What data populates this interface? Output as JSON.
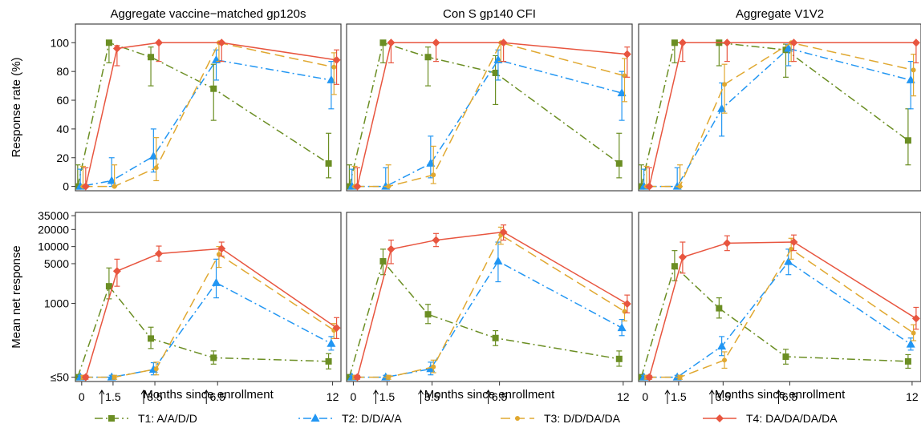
{
  "chart_data": {
    "type": "line",
    "panels": [
      {
        "title": "Aggregate vaccine−matched gp120s"
      },
      {
        "title": "Con S gp140 CFI"
      },
      {
        "title": "Aggregate V1V2"
      }
    ],
    "x": [
      0,
      1.5,
      3.5,
      6.5,
      12
    ],
    "x_tick_labels": [
      "0",
      "1.5",
      "3.5",
      "6.5",
      "12"
    ],
    "x_tick_arrows": [
      false,
      true,
      true,
      true,
      false
    ],
    "xlabel": "Months since enrollment",
    "xlim": [
      -0.3,
      12.4
    ],
    "rows": [
      {
        "key": "rate",
        "ylabel": "Response rate (%)",
        "scale": "linear",
        "ylim": [
          -3,
          113
        ],
        "y_ticks": [
          0,
          20,
          40,
          60,
          80,
          100
        ],
        "y_tick_labels": [
          "0",
          "20",
          "40",
          "60",
          "80",
          "100"
        ],
        "data": [
          [
            {
              "values": [
                0,
                100,
                90,
                68,
                16
              ],
              "lower": [
                0,
                86,
                70,
                46,
                6
              ],
              "upper": [
                15,
                100,
                97,
                85,
                37
              ]
            },
            {
              "values": [
                0,
                4,
                21,
                88,
                74
              ],
              "lower": [
                0,
                0,
                10,
                74,
                54
              ],
              "upper": [
                12,
                20,
                40,
                95,
                87
              ]
            },
            {
              "values": [
                0,
                0,
                13,
                100,
                83
              ],
              "lower": [
                0,
                0,
                4,
                87,
                64
              ],
              "upper": [
                14,
                15,
                34,
                100,
                93
              ]
            },
            {
              "values": [
                0,
                96,
                100,
                100,
                88
              ],
              "lower": [
                0,
                84,
                87,
                87,
                71
              ],
              "upper": [
                13,
                98,
                100,
                100,
                95
              ]
            }
          ],
          [
            {
              "values": [
                0,
                100,
                90,
                79,
                16
              ],
              "lower": [
                0,
                86,
                70,
                57,
                6
              ],
              "upper": [
                15,
                100,
                97,
                91,
                37
              ]
            },
            {
              "values": [
                0,
                0,
                16,
                88,
                65
              ],
              "lower": [
                0,
                0,
                6,
                74,
                46
              ],
              "upper": [
                12,
                13,
                35,
                95,
                80
              ]
            },
            {
              "values": [
                0,
                0,
                8,
                100,
                77
              ],
              "lower": [
                0,
                0,
                2,
                87,
                59
              ],
              "upper": [
                14,
                15,
                28,
                100,
                89
              ]
            },
            {
              "values": [
                0,
                100,
                100,
                100,
                92
              ],
              "lower": [
                0,
                86,
                87,
                87,
                76
              ],
              "upper": [
                13,
                100,
                100,
                100,
                97
              ]
            }
          ],
          [
            {
              "values": [
                0,
                100,
                100,
                95,
                32
              ],
              "lower": [
                0,
                86,
                84,
                76,
                15
              ],
              "upper": [
                15,
                100,
                100,
                99,
                54
              ]
            },
            {
              "values": [
                0,
                0,
                54,
                96,
                74
              ],
              "lower": [
                0,
                0,
                35,
                84,
                54
              ],
              "upper": [
                12,
                13,
                72,
                99,
                87
              ]
            },
            {
              "values": [
                0,
                0,
                71,
                100,
                81
              ],
              "lower": [
                0,
                0,
                51,
                87,
                63
              ],
              "upper": [
                14,
                15,
                85,
                100,
                92
              ]
            },
            {
              "values": [
                0,
                100,
                100,
                100,
                100
              ],
              "lower": [
                0,
                87,
                87,
                87,
                86
              ],
              "upper": [
                13,
                100,
                100,
                100,
                100
              ]
            }
          ]
        ]
      },
      {
        "key": "mean",
        "ylabel": "Mean net response",
        "scale": "log",
        "ylim": [
          42,
          40000
        ],
        "y_ticks": [
          50,
          1000,
          5000,
          10000,
          20000,
          35000
        ],
        "y_tick_labels": [
          "≤50",
          "1000",
          "5000",
          "10000",
          "20000",
          "35000"
        ],
        "data": [
          [
            {
              "values": [
                50,
                2000,
                240,
                110,
                95
              ],
              "lower": [
                46,
                1200,
                160,
                85,
                70
              ],
              "upper": [
                54,
                4200,
                380,
                145,
                130
              ]
            },
            {
              "values": [
                50,
                50,
                68,
                2300,
                195
              ],
              "lower": [
                46,
                46,
                55,
                1250,
                150
              ],
              "upper": [
                54,
                54,
                90,
                6000,
                260
              ]
            },
            {
              "values": [
                50,
                50,
                70,
                7300,
                335
              ],
              "lower": [
                46,
                46,
                55,
                4300,
                240
              ],
              "upper": [
                54,
                54,
                92,
                10000,
                440
              ]
            },
            {
              "values": [
                50,
                3700,
                7500,
                9200,
                370
              ],
              "lower": [
                46,
                2000,
                5500,
                6800,
                240
              ],
              "upper": [
                54,
                6000,
                10200,
                12000,
                560
              ]
            }
          ],
          [
            {
              "values": [
                50,
                5500,
                640,
                245,
                105
              ],
              "lower": [
                46,
                3200,
                440,
                180,
                78
              ],
              "upper": [
                54,
                9000,
                960,
                330,
                145
              ]
            },
            {
              "values": [
                50,
                50,
                70,
                5500,
                370
              ],
              "lower": [
                46,
                46,
                55,
                2400,
                270
              ],
              "upper": [
                54,
                54,
                92,
                12000,
                520
              ]
            },
            {
              "values": [
                50,
                50,
                76,
                16000,
                720
              ],
              "lower": [
                46,
                46,
                60,
                11000,
                490
              ],
              "upper": [
                54,
                54,
                100,
                22000,
                1000
              ]
            },
            {
              "values": [
                50,
                9000,
                13000,
                18000,
                980
              ],
              "lower": [
                46,
                5000,
                10000,
                13000,
                680
              ],
              "upper": [
                54,
                13000,
                17000,
                24000,
                1400
              ]
            }
          ],
          [
            {
              "values": [
                50,
                4500,
                820,
                115,
                95
              ],
              "lower": [
                46,
                2500,
                550,
                85,
                72
              ],
              "upper": [
                54,
                8500,
                1250,
                155,
                125
              ]
            },
            {
              "values": [
                50,
                50,
                175,
                5400,
                190
              ],
              "lower": [
                46,
                46,
                120,
                3200,
                150
              ],
              "upper": [
                54,
                54,
                260,
                9000,
                245
              ]
            },
            {
              "values": [
                50,
                50,
                100,
                9000,
                300
              ],
              "lower": [
                46,
                46,
                72,
                6000,
                220
              ],
              "upper": [
                54,
                54,
                140,
                14000,
                420
              ]
            },
            {
              "values": [
                50,
                6500,
                11500,
                12000,
                540
              ],
              "lower": [
                46,
                3400,
                8500,
                8500,
                350
              ],
              "upper": [
                54,
                12000,
                15500,
                16000,
                850
              ]
            }
          ]
        ]
      }
    ],
    "series": [
      {
        "name": "T1: A/A/D/D",
        "color": "#6b8e23",
        "marker": "square",
        "dash": "dashdot"
      },
      {
        "name": "T2: D/D/A/A",
        "color": "#2196f3",
        "marker": "triangle",
        "dash": "dotdash"
      },
      {
        "name": "T3: D/D/DA/DA",
        "color": "#e0a830",
        "marker": "circle",
        "dash": "dashed"
      },
      {
        "name": "T4: DA/DA/DA/DA",
        "color": "#e8553f",
        "marker": "diamond",
        "dash": "solid"
      }
    ],
    "legend": "bottom",
    "grid": false
  }
}
